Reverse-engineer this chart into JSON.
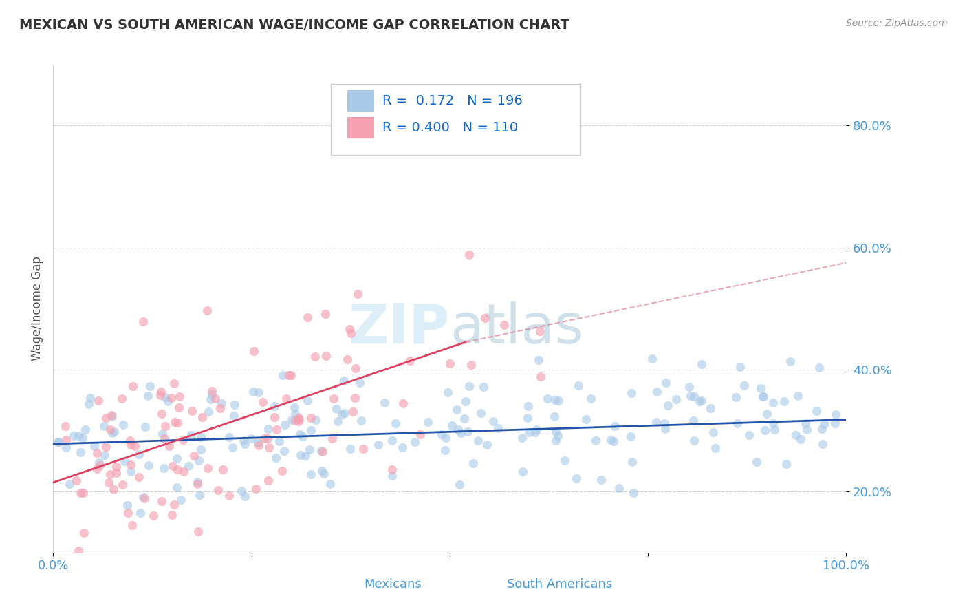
{
  "title": "MEXICAN VS SOUTH AMERICAN WAGE/INCOME GAP CORRELATION CHART",
  "source": "Source: ZipAtlas.com",
  "ylabel": "Wage/Income Gap",
  "xlim": [
    0.0,
    1.0
  ],
  "ylim": [
    0.1,
    0.9
  ],
  "yticks": [
    0.2,
    0.4,
    0.6,
    0.8
  ],
  "ytick_labels": [
    "20.0%",
    "40.0%",
    "60.0%",
    "80.0%"
  ],
  "legend_R_blue": "0.172",
  "legend_N_blue": "196",
  "legend_R_pink": "0.400",
  "legend_N_pink": "110",
  "blue_color": "#a8c8e8",
  "pink_color": "#f4a0b0",
  "trend_blue_color": "#2255aa",
  "trend_pink_color": "#e04060",
  "trend_dash_color": "#e08898",
  "watermark_color": "#ddeef8",
  "background_color": "#ffffff",
  "grid_color": "#cccccc",
  "title_color": "#333333",
  "axis_label_color": "#4499dd",
  "legend_text_color": "#1166cc",
  "blue_trend_start_x": 0.0,
  "blue_trend_start_y": 0.278,
  "blue_trend_end_x": 1.0,
  "blue_trend_end_y": 0.318,
  "pink_trend_start_x": 0.0,
  "pink_trend_start_y": 0.215,
  "pink_trend_solid_end_x": 0.52,
  "pink_trend_solid_end_y": 0.445,
  "pink_trend_dash_end_x": 1.0,
  "pink_trend_dash_end_y": 0.575,
  "N_blue": 196,
  "N_pink": 110,
  "seed": 42
}
